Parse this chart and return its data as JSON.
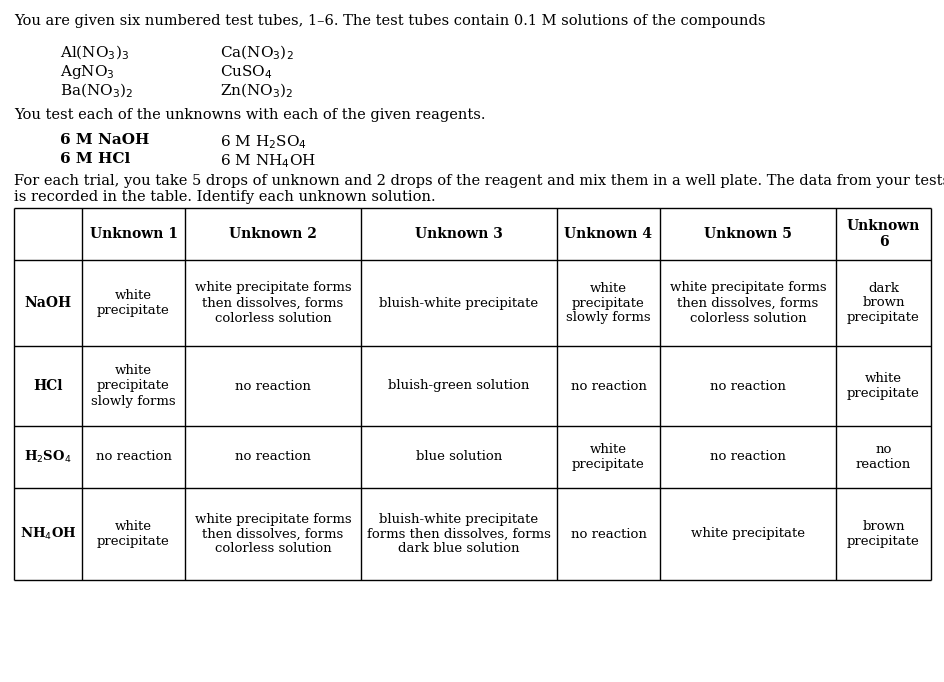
{
  "intro_text": "You are given six numbered test tubes, 1–6. The test tubes contain 0.1 M solutions of the compounds",
  "compounds_col1": [
    "Al(NO$_3$)$_3$",
    "AgNO$_3$",
    "Ba(NO$_3$)$_2$"
  ],
  "compounds_col2": [
    "Ca(NO$_3$)$_2$",
    "CuSO$_4$",
    "Zn(NO$_3$)$_2$"
  ],
  "reagents_text": "You test each of the unknowns with each of the given reagents.",
  "reagents_col1": [
    "6 M NaOH",
    "6 M HCl"
  ],
  "reagents_col2": [
    "6 M H$_2$SO$_4$",
    "6 M NH$_4$OH"
  ],
  "instruction_text": "For each trial, you take 5 drops of unknown and 2 drops of the reagent and mix them in a well plate. The data from your tests\nis recorded in the table. Identify each unknown solution.",
  "table_headers": [
    "",
    "Unknown 1",
    "Unknown 2",
    "Unknown 3",
    "Unknown 4",
    "Unknown 5",
    "Unknown\n6"
  ],
  "row_labels": [
    "NaOH",
    "HCl",
    "H$_2$SO$_4$",
    "NH$_4$OH"
  ],
  "table_data": [
    [
      "white\nprecipitate",
      "white precipitate forms\nthen dissolves, forms\ncolorless solution",
      "bluish-white precipitate",
      "white\nprecipitate\nslowly forms",
      "white precipitate forms\nthen dissolves, forms\ncolorless solution",
      "dark\nbrown\nprecipitate"
    ],
    [
      "white\nprecipitate\nslowly forms",
      "no reaction",
      "bluish-green solution",
      "no reaction",
      "no reaction",
      "white\nprecipitate"
    ],
    [
      "no reaction",
      "no reaction",
      "blue solution",
      "white\nprecipitate",
      "no reaction",
      "no\nreaction"
    ],
    [
      "white\nprecipitate",
      "white precipitate forms\nthen dissolves, forms\ncolorless solution",
      "bluish-white precipitate\nforms then dissolves, forms\ndark blue solution",
      "no reaction",
      "white precipitate",
      "brown\nprecipitate"
    ]
  ],
  "bg_color": "#ffffff",
  "text_color": "#000000"
}
